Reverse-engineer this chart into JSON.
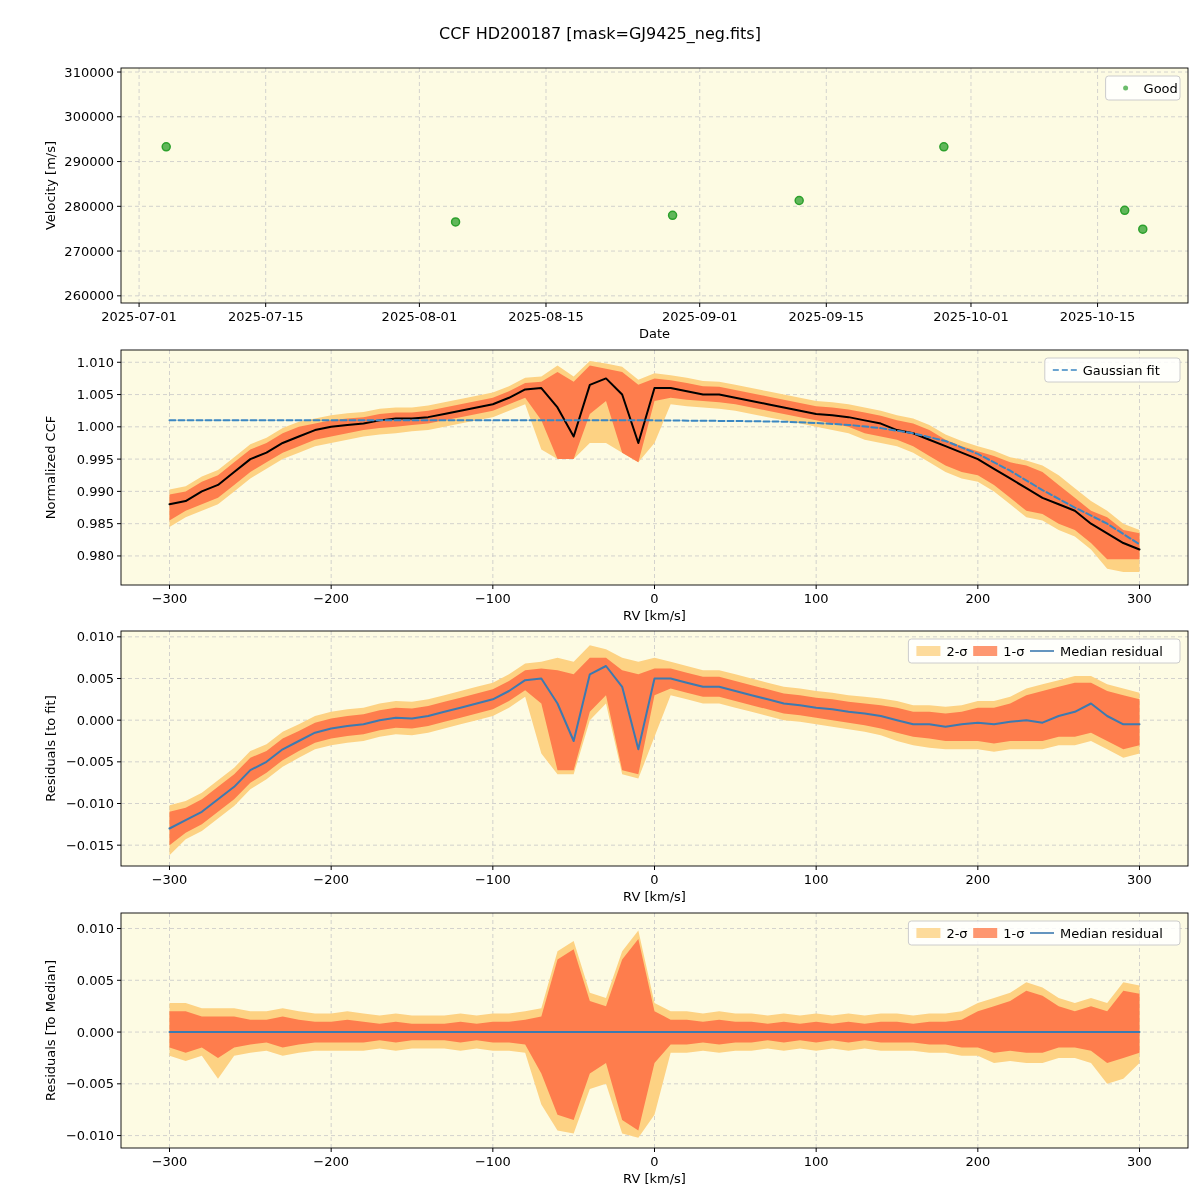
{
  "chart_data": [
    {
      "type": "scatter",
      "title": "CCF HD200187 [mask=GJ9425_neg.fits]",
      "xlabel": "Date",
      "ylabel": "Velocity [m/s]",
      "x": [
        "2025-07-04",
        "2025-08-05",
        "2025-08-29",
        "2025-09-12",
        "2025-09-28",
        "2025-10-18",
        "2025-10-20"
      ],
      "series": [
        {
          "name": "Good",
          "color": "#2ca02c",
          "values": [
            293300,
            276500,
            278000,
            281300,
            293300,
            279100,
            274900
          ]
        }
      ],
      "xlim": [
        "2025-06-29",
        "2025-10-25"
      ],
      "xticks": [
        "2025-07-01",
        "2025-07-15",
        "2025-08-01",
        "2025-08-15",
        "2025-09-01",
        "2025-09-15",
        "2025-10-01",
        "2025-10-15"
      ],
      "ylim": [
        258400,
        310900
      ],
      "yticks": [
        260000,
        270000,
        280000,
        290000,
        300000,
        310000
      ],
      "grid": true,
      "legend": "top right",
      "marker": "circle"
    },
    {
      "type": "line",
      "xlabel": "RV [km/s]",
      "ylabel": "Normalized CCF",
      "x": [
        -300,
        -290,
        -280,
        -270,
        -260,
        -250,
        -240,
        -230,
        -220,
        -210,
        -200,
        -190,
        -180,
        -170,
        -160,
        -150,
        -140,
        -130,
        -120,
        -110,
        -100,
        -90,
        -80,
        -70,
        -60,
        -50,
        -40,
        -30,
        -20,
        -10,
        0,
        10,
        20,
        30,
        40,
        50,
        60,
        70,
        80,
        90,
        100,
        110,
        120,
        130,
        140,
        150,
        160,
        170,
        180,
        190,
        200,
        210,
        220,
        230,
        240,
        250,
        260,
        270,
        280,
        290,
        300
      ],
      "series": [
        {
          "color": "#fdd283",
          "values": [
            null,
            null,
            null,
            null,
            null,
            null,
            null,
            null,
            null,
            null,
            null,
            null,
            null,
            null,
            null,
            null,
            null,
            null,
            null,
            null,
            null,
            null,
            null,
            null,
            null,
            null,
            null,
            null,
            null,
            null,
            null,
            null,
            null,
            null,
            null,
            null,
            null,
            null,
            null,
            null,
            null,
            null,
            null,
            null,
            null,
            null,
            null,
            null,
            null,
            null,
            null,
            null,
            null,
            null,
            null,
            null,
            null,
            null,
            null,
            null,
            null
          ],
          "lower": [
            0.9845,
            0.986,
            0.987,
            0.988,
            0.99,
            0.992,
            0.9935,
            0.995,
            0.996,
            0.997,
            0.9975,
            0.998,
            0.9985,
            0.9988,
            0.999,
            0.9993,
            0.9995,
            1.0,
            1.0005,
            1.001,
            1.0015,
            1.0025,
            1.0035,
            0.9965,
            0.995,
            0.995,
            0.9975,
            0.9975,
            0.996,
            0.9945,
            0.9975,
            1.0035,
            1.0032,
            1.003,
            1.0028,
            1.0025,
            1.002,
            1.0015,
            1.001,
            1.0005,
            1.0,
            0.9995,
            0.999,
            0.998,
            0.9975,
            0.997,
            0.996,
            0.9945,
            0.993,
            0.992,
            0.9915,
            0.99,
            0.988,
            0.986,
            0.9855,
            0.984,
            0.983,
            0.981,
            0.978,
            0.9775,
            0.9775
          ],
          "upper": [
            0.9903,
            0.9908,
            0.9923,
            0.9933,
            0.9953,
            0.9973,
            0.9983,
            0.9998,
            1.0008,
            1.0013,
            1.0018,
            1.0021,
            1.0023,
            1.0028,
            1.003,
            1.003,
            1.0033,
            1.0038,
            1.0043,
            1.0048,
            1.0053,
            1.0063,
            1.0076,
            1.0078,
            1.0095,
            1.0078,
            1.0102,
            1.0098,
            1.0093,
            1.0073,
            1.0083,
            1.008,
            1.0076,
            1.0071,
            1.007,
            1.0065,
            1.006,
            1.0055,
            1.005,
            1.0045,
            1.004,
            1.0038,
            1.0035,
            1.003,
            1.0025,
            1.0018,
            1.0013,
            1.0003,
            0.9988,
            0.9978,
            0.997,
            0.9963,
            0.9953,
            0.9948,
            0.994,
            0.9925,
            0.9905,
            0.9885,
            0.987,
            0.985,
            0.984
          ]
        },
        {
          "color": "#fe7d4d",
          "values": [
            null,
            null,
            null,
            null,
            null,
            null,
            null,
            null,
            null,
            null,
            null,
            null,
            null,
            null,
            null,
            null,
            null,
            null,
            null,
            null,
            null,
            null,
            null,
            null,
            null,
            null,
            null,
            null,
            null,
            null,
            null,
            null,
            null,
            null,
            null,
            null,
            null,
            null,
            null,
            null,
            null,
            null,
            null,
            null,
            null,
            null,
            null,
            null,
            null,
            null,
            null,
            null,
            null,
            null,
            null,
            null,
            null,
            null,
            null,
            null,
            null
          ],
          "lower": [
            0.9855,
            0.987,
            0.988,
            0.989,
            0.991,
            0.993,
            0.9945,
            0.996,
            0.997,
            0.998,
            0.9985,
            0.999,
            0.9995,
            0.9998,
            1.0,
            1.0003,
            1.0005,
            1.001,
            1.0015,
            1.002,
            1.0025,
            1.0035,
            1.0045,
            1.001,
            0.995,
            0.995,
            1.002,
            1.004,
            0.996,
            0.9945,
            1.004,
            1.0045,
            1.0042,
            1.004,
            1.0038,
            1.0035,
            1.003,
            1.0025,
            1.002,
            1.0015,
            1.001,
            1.0005,
            1.0,
            0.999,
            0.9985,
            0.998,
            0.997,
            0.9955,
            0.994,
            0.993,
            0.9925,
            0.991,
            0.989,
            0.987,
            0.9865,
            0.985,
            0.984,
            0.982,
            0.9795,
            0.9795,
            0.9795
          ],
          "upper": [
            0.9895,
            0.99,
            0.9915,
            0.9925,
            0.9945,
            0.9965,
            0.9975,
            0.999,
            1.0,
            1.0005,
            1.001,
            1.0013,
            1.0015,
            1.002,
            1.0022,
            1.0022,
            1.0025,
            1.003,
            1.0035,
            1.004,
            1.0045,
            1.0055,
            1.0068,
            1.007,
            1.0085,
            1.007,
            1.0095,
            1.009,
            1.0085,
            1.0065,
            1.0075,
            1.0072,
            1.0068,
            1.0063,
            1.0062,
            1.0057,
            1.0052,
            1.0047,
            1.0042,
            1.0037,
            1.0032,
            1.003,
            1.0027,
            1.0022,
            1.0017,
            1.001,
            1.0005,
            0.9995,
            0.998,
            0.997,
            0.9962,
            0.9955,
            0.9945,
            0.994,
            0.993,
            0.991,
            0.989,
            0.987,
            0.986,
            0.984,
            0.9835
          ]
        },
        {
          "color": "#000000",
          "values": [
            0.988,
            0.9885,
            0.99,
            0.991,
            0.993,
            0.995,
            0.996,
            0.9975,
            0.9985,
            0.9995,
            1.0,
            1.0003,
            1.0005,
            1.001,
            1.0013,
            1.0013,
            1.0015,
            1.002,
            1.0025,
            1.003,
            1.0035,
            1.0045,
            1.0058,
            1.006,
            1.003,
            0.9985,
            1.0065,
            1.0075,
            1.005,
            0.9975,
            1.006,
            1.006,
            1.0055,
            1.005,
            1.005,
            1.0045,
            1.004,
            1.0035,
            1.003,
            1.0025,
            1.002,
            1.0018,
            1.0015,
            1.001,
            1.0005,
            0.9995,
            0.999,
            0.998,
            0.997,
            0.996,
            0.995,
            0.9935,
            0.992,
            0.9905,
            0.989,
            0.988,
            0.987,
            0.985,
            0.9835,
            0.982,
            0.981
          ]
        },
        {
          "name": "Gaussian fit",
          "color": "#3b87c2",
          "line_style": "dashed",
          "x": [
            -300,
            -200,
            -100,
            0,
            50,
            80,
            100,
            120,
            140,
            160,
            180,
            200,
            220,
            240,
            260,
            280,
            300
          ],
          "values": [
            1.001,
            1.001,
            1.001,
            1.001,
            1.0009,
            1.0008,
            1.0006,
            1.0003,
            0.9998,
            0.999,
            0.9978,
            0.9958,
            0.9932,
            0.9902,
            0.9875,
            0.985,
            0.9818
          ]
        }
      ],
      "xlim": [
        -330,
        330
      ],
      "xticks": [
        {
          "value": -300,
          "label": "−300"
        },
        {
          "value": -200,
          "label": "−200"
        },
        {
          "value": -100,
          "label": "−100"
        },
        0,
        100,
        200,
        300
      ],
      "ylim": [
        0.9755,
        1.0119
      ],
      "yticks": [
        {
          "value": 0.98,
          "label": "0.980"
        },
        {
          "value": 0.985,
          "label": "0.985"
        },
        {
          "value": 0.99,
          "label": "0.990"
        },
        {
          "value": 0.995,
          "label": "0.995"
        },
        {
          "value": 1.0,
          "label": "1.000"
        },
        {
          "value": 1.005,
          "label": "1.005"
        },
        {
          "value": 1.01,
          "label": "1.010"
        }
      ],
      "grid": true,
      "legend": "top right"
    },
    {
      "type": "line",
      "xlabel": "RV [km/s]",
      "ylabel": "Residuals [to fit]",
      "x": [
        -300,
        -290,
        -280,
        -270,
        -260,
        -250,
        -240,
        -230,
        -220,
        -210,
        -200,
        -190,
        -180,
        -170,
        -160,
        -150,
        -140,
        -130,
        -120,
        -110,
        -100,
        -90,
        -80,
        -70,
        -60,
        -50,
        -40,
        -30,
        -20,
        -10,
        0,
        10,
        20,
        30,
        40,
        50,
        60,
        70,
        80,
        90,
        100,
        110,
        120,
        130,
        140,
        150,
        160,
        170,
        180,
        190,
        200,
        210,
        220,
        230,
        240,
        250,
        260,
        270,
        280,
        290,
        300
      ],
      "series": [
        {
          "name": "2-σ",
          "color": "#fdd283",
          "values": [
            null,
            null,
            null,
            null,
            null,
            null,
            null,
            null,
            null,
            null,
            null,
            null,
            null,
            null,
            null,
            null,
            null,
            null,
            null,
            null,
            null,
            null,
            null,
            null,
            null,
            null,
            null,
            null,
            null,
            null,
            null,
            null,
            null,
            null,
            null,
            null,
            null,
            null,
            null,
            null,
            null,
            null,
            null,
            null,
            null,
            null,
            null,
            null,
            null,
            null,
            null,
            null,
            null,
            null,
            null,
            null,
            null,
            null,
            null,
            null,
            null
          ],
          "lower": [
            -0.0162,
            -0.0143,
            -0.0133,
            -0.0118,
            -0.0103,
            -0.0083,
            -0.0071,
            -0.0056,
            -0.0045,
            -0.0035,
            -0.003,
            -0.0027,
            -0.0025,
            -0.002,
            -0.0017,
            -0.0018,
            -0.0015,
            -0.001,
            -0.0005,
            0,
            0.0005,
            0.0015,
            0.0028,
            -0.004,
            -0.0065,
            -0.0065,
            0,
            0.002,
            -0.0065,
            -0.007,
            -0.002,
            0.003,
            0.0025,
            0.002,
            0.002,
            0.0015,
            0.001,
            0.0005,
            0,
            -0.0002,
            -0.0005,
            -0.0008,
            -0.0011,
            -0.0014,
            -0.0018,
            -0.0025,
            -0.003,
            -0.0033,
            -0.0035,
            -0.0035,
            -0.0035,
            -0.0038,
            -0.0035,
            -0.0035,
            -0.0035,
            -0.003,
            -0.003,
            -0.0025,
            -0.0035,
            -0.0045,
            -0.004
          ],
          "upper": [
            -0.0102,
            -0.0097,
            -0.0087,
            -0.0072,
            -0.0057,
            -0.0037,
            -0.0029,
            -0.0014,
            -0.0005,
            0.0005,
            0.001,
            0.0013,
            0.0015,
            0.002,
            0.0023,
            0.0022,
            0.0025,
            0.003,
            0.0035,
            0.004,
            0.0045,
            0.0055,
            0.0068,
            0.007,
            0.0075,
            0.007,
            0.009,
            0.0085,
            0.0075,
            0.007,
            0.0075,
            0.007,
            0.0065,
            0.006,
            0.006,
            0.0055,
            0.005,
            0.0045,
            0.004,
            0.0038,
            0.0035,
            0.0033,
            0.003,
            0.0028,
            0.0026,
            0.0023,
            0.0018,
            0.0018,
            0.0016,
            0.0018,
            0.0023,
            0.0023,
            0.0028,
            0.0038,
            0.0043,
            0.0048,
            0.0053,
            0.0053,
            0.0043,
            0.0038,
            0.0033
          ]
        },
        {
          "name": "1-σ",
          "color": "#fe7d4d",
          "values": [
            null,
            null,
            null,
            null,
            null,
            null,
            null,
            null,
            null,
            null,
            null,
            null,
            null,
            null,
            null,
            null,
            null,
            null,
            null,
            null,
            null,
            null,
            null,
            null,
            null,
            null,
            null,
            null,
            null,
            null,
            null,
            null,
            null,
            null,
            null,
            null,
            null,
            null,
            null,
            null,
            null,
            null,
            null,
            null,
            null,
            null,
            null,
            null,
            null,
            null,
            null,
            null,
            null,
            null,
            null,
            null,
            null,
            null,
            null,
            null,
            null
          ],
          "lower": [
            -0.015,
            -0.0135,
            -0.0125,
            -0.011,
            -0.0095,
            -0.0075,
            -0.0063,
            -0.0048,
            -0.0037,
            -0.0027,
            -0.0022,
            -0.0019,
            -0.0017,
            -0.0012,
            -0.0009,
            -0.001,
            -0.0007,
            -0.0002,
            0.0003,
            0.0008,
            0.0013,
            0.0023,
            0.0036,
            0.002,
            -0.006,
            -0.006,
            0.001,
            0.003,
            -0.006,
            -0.0065,
            0.003,
            0.0038,
            0.0033,
            0.0028,
            0.0028,
            0.0023,
            0.0018,
            0.0013,
            0.0008,
            0.0006,
            0.0003,
            0,
            -0.0003,
            -0.0006,
            -0.001,
            -0.0015,
            -0.002,
            -0.0022,
            -0.0025,
            -0.0025,
            -0.0025,
            -0.0028,
            -0.0025,
            -0.0025,
            -0.0025,
            -0.002,
            -0.002,
            -0.0015,
            -0.0025,
            -0.0035,
            -0.003
          ],
          "upper": [
            -0.011,
            -0.0105,
            -0.0095,
            -0.008,
            -0.0065,
            -0.0045,
            -0.0037,
            -0.0022,
            -0.0013,
            -0.0003,
            0.0002,
            0.0005,
            0.0007,
            0.0012,
            0.0015,
            0.0014,
            0.0017,
            0.0022,
            0.0027,
            0.0032,
            0.0037,
            0.0047,
            0.006,
            0.0062,
            0.006,
            0.0055,
            0.0075,
            0.0075,
            0.006,
            0.0055,
            0.0062,
            0.0062,
            0.0057,
            0.0052,
            0.0052,
            0.0047,
            0.0042,
            0.0037,
            0.0032,
            0.003,
            0.0027,
            0.0025,
            0.0022,
            0.002,
            0.0018,
            0.0015,
            0.001,
            0.001,
            0.0008,
            0.001,
            0.0015,
            0.0015,
            0.002,
            0.003,
            0.0035,
            0.004,
            0.0045,
            0.0045,
            0.0035,
            0.003,
            0.0025
          ]
        },
        {
          "name": "Median residual",
          "color": "#3d7ab0",
          "values": [
            -0.013,
            -0.012,
            -0.011,
            -0.0095,
            -0.008,
            -0.006,
            -0.005,
            -0.0035,
            -0.0025,
            -0.0015,
            -0.001,
            -0.0007,
            -0.0005,
            0,
            0.0003,
            0.0002,
            0.0005,
            0.001,
            0.0015,
            0.002,
            0.0025,
            0.0035,
            0.0048,
            0.005,
            0.002,
            -0.0025,
            0.0055,
            0.0065,
            0.004,
            -0.0035,
            0.005,
            0.005,
            0.0045,
            0.004,
            0.004,
            0.0035,
            0.003,
            0.0025,
            0.002,
            0.0018,
            0.0015,
            0.0013,
            0.001,
            0.0008,
            0.0005,
            0,
            -0.0005,
            -0.0005,
            -0.0008,
            -0.0005,
            -0.0003,
            -0.0005,
            -0.0002,
            0,
            -0.0003,
            0.0005,
            0.001,
            0.002,
            0.0005,
            -0.0005,
            -0.0005
          ]
        }
      ],
      "xlim": [
        -330,
        330
      ],
      "xticks": [
        {
          "value": -300,
          "label": "−300"
        },
        {
          "value": -200,
          "label": "−200"
        },
        {
          "value": -100,
          "label": "−100"
        },
        0,
        100,
        200,
        300
      ],
      "ylim": [
        -0.0175,
        0.0107
      ],
      "yticks": [
        {
          "value": -0.015,
          "label": "−0.015"
        },
        {
          "value": -0.01,
          "label": "−0.010"
        },
        {
          "value": -0.005,
          "label": "−0.005"
        },
        {
          "value": 0,
          "label": "0.000"
        },
        {
          "value": 0.005,
          "label": "0.005"
        },
        {
          "value": 0.01,
          "label": "0.010"
        }
      ],
      "grid": true,
      "legend": "top right"
    },
    {
      "type": "line",
      "xlabel": "RV [km/s]",
      "ylabel": "Residuals [To Median]",
      "x": [
        -300,
        -290,
        -280,
        -270,
        -260,
        -250,
        -240,
        -230,
        -220,
        -210,
        -200,
        -190,
        -180,
        -170,
        -160,
        -150,
        -140,
        -130,
        -120,
        -110,
        -100,
        -90,
        -80,
        -70,
        -60,
        -50,
        -40,
        -30,
        -20,
        -10,
        0,
        10,
        20,
        30,
        40,
        50,
        60,
        70,
        80,
        90,
        100,
        110,
        120,
        130,
        140,
        150,
        160,
        170,
        180,
        190,
        200,
        210,
        220,
        230,
        240,
        250,
        260,
        270,
        280,
        290,
        300
      ],
      "series": [
        {
          "name": "2-σ",
          "color": "#fdd283",
          "values": [
            null,
            null,
            null,
            null,
            null,
            null,
            null,
            null,
            null,
            null,
            null,
            null,
            null,
            null,
            null,
            null,
            null,
            null,
            null,
            null,
            null,
            null,
            null,
            null,
            null,
            null,
            null,
            null,
            null,
            null,
            null,
            null,
            null,
            null,
            null,
            null,
            null,
            null,
            null,
            null,
            null,
            null,
            null,
            null,
            null,
            null,
            null,
            null,
            null,
            null,
            null,
            null,
            null,
            null,
            null,
            null,
            null,
            null,
            null,
            null,
            null
          ],
          "lower": [
            -0.0023,
            -0.0028,
            -0.0023,
            -0.0045,
            -0.0023,
            -0.002,
            -0.0018,
            -0.0023,
            -0.002,
            -0.0018,
            -0.0018,
            -0.0018,
            -0.0018,
            -0.0016,
            -0.0018,
            -0.0016,
            -0.0016,
            -0.0016,
            -0.0018,
            -0.0016,
            -0.0018,
            -0.0018,
            -0.002,
            -0.007,
            -0.0095,
            -0.0098,
            -0.0055,
            -0.005,
            -0.0098,
            -0.0102,
            -0.008,
            -0.002,
            -0.002,
            -0.0018,
            -0.002,
            -0.0018,
            -0.0018,
            -0.0016,
            -0.0018,
            -0.0016,
            -0.0018,
            -0.0016,
            -0.0018,
            -0.0016,
            -0.0018,
            -0.0018,
            -0.0018,
            -0.002,
            -0.002,
            -0.0023,
            -0.0023,
            -0.003,
            -0.0028,
            -0.003,
            -0.003,
            -0.0025,
            -0.0025,
            -0.003,
            -0.005,
            -0.0045,
            -0.003
          ],
          "upper": [
            0.0028,
            0.0028,
            0.0023,
            0.0023,
            0.0023,
            0.002,
            0.002,
            0.0023,
            0.002,
            0.0018,
            0.0018,
            0.002,
            0.0018,
            0.0016,
            0.0018,
            0.0016,
            0.0016,
            0.0016,
            0.0018,
            0.0016,
            0.0018,
            0.0018,
            0.002,
            0.0023,
            0.0078,
            0.0088,
            0.0038,
            0.0033,
            0.0078,
            0.0098,
            0.0028,
            0.002,
            0.002,
            0.0018,
            0.002,
            0.0018,
            0.0018,
            0.0016,
            0.0018,
            0.0016,
            0.0018,
            0.0016,
            0.0018,
            0.0016,
            0.0018,
            0.0018,
            0.0016,
            0.0018,
            0.0018,
            0.002,
            0.0028,
            0.0033,
            0.0038,
            0.0048,
            0.0043,
            0.0033,
            0.0028,
            0.0033,
            0.0028,
            0.0048,
            0.0045
          ]
        },
        {
          "name": "1-σ",
          "color": "#fe7d4d",
          "values": [
            null,
            null,
            null,
            null,
            null,
            null,
            null,
            null,
            null,
            null,
            null,
            null,
            null,
            null,
            null,
            null,
            null,
            null,
            null,
            null,
            null,
            null,
            null,
            null,
            null,
            null,
            null,
            null,
            null,
            null,
            null,
            null,
            null,
            null,
            null,
            null,
            null,
            null,
            null,
            null,
            null,
            null,
            null,
            null,
            null,
            null,
            null,
            null,
            null,
            null,
            null,
            null,
            null,
            null,
            null,
            null,
            null,
            null,
            null,
            null,
            null
          ],
          "lower": [
            -0.0015,
            -0.002,
            -0.0015,
            -0.0025,
            -0.0015,
            -0.0012,
            -0.001,
            -0.0015,
            -0.0012,
            -0.001,
            -0.001,
            -0.001,
            -0.001,
            -0.0008,
            -0.001,
            -0.0008,
            -0.0008,
            -0.0008,
            -0.001,
            -0.0008,
            -0.001,
            -0.001,
            -0.0012,
            -0.004,
            -0.008,
            -0.0085,
            -0.004,
            -0.003,
            -0.0085,
            -0.0095,
            -0.003,
            -0.0012,
            -0.0012,
            -0.001,
            -0.0012,
            -0.001,
            -0.001,
            -0.0008,
            -0.001,
            -0.0008,
            -0.001,
            -0.0008,
            -0.001,
            -0.0008,
            -0.001,
            -0.001,
            -0.001,
            -0.0012,
            -0.0012,
            -0.0015,
            -0.0015,
            -0.002,
            -0.0018,
            -0.002,
            -0.002,
            -0.0015,
            -0.0015,
            -0.0018,
            -0.003,
            -0.0025,
            -0.002
          ],
          "upper": [
            0.002,
            0.002,
            0.0015,
            0.0015,
            0.0015,
            0.0012,
            0.0012,
            0.0015,
            0.0012,
            0.001,
            0.001,
            0.0012,
            0.001,
            0.0008,
            0.001,
            0.0008,
            0.0008,
            0.0008,
            0.001,
            0.0008,
            0.001,
            0.001,
            0.0012,
            0.0015,
            0.007,
            0.008,
            0.003,
            0.0025,
            0.007,
            0.009,
            0.002,
            0.0012,
            0.0012,
            0.001,
            0.0012,
            0.001,
            0.001,
            0.0008,
            0.001,
            0.0008,
            0.001,
            0.0008,
            0.001,
            0.0008,
            0.001,
            0.001,
            0.0008,
            0.001,
            0.001,
            0.0012,
            0.002,
            0.0025,
            0.003,
            0.004,
            0.0035,
            0.0025,
            0.002,
            0.0025,
            0.002,
            0.004,
            0.0037
          ]
        },
        {
          "name": "Median residual",
          "color": "#3d7ab0",
          "x": [
            -300,
            300
          ],
          "values": [
            0,
            0
          ]
        }
      ],
      "xlim": [
        -330,
        330
      ],
      "xticks": [
        {
          "value": -300,
          "label": "−300"
        },
        {
          "value": -200,
          "label": "−200"
        },
        {
          "value": -100,
          "label": "−100"
        },
        0,
        100,
        200,
        300
      ],
      "ylim": [
        -0.0112,
        0.0115
      ],
      "yticks": [
        {
          "value": -0.01,
          "label": "−0.010"
        },
        {
          "value": -0.005,
          "label": "−0.005"
        },
        {
          "value": 0,
          "label": "0.000"
        },
        {
          "value": 0.005,
          "label": "0.005"
        },
        {
          "value": 0.01,
          "label": "0.010"
        }
      ],
      "grid": true,
      "legend": "top right"
    }
  ]
}
